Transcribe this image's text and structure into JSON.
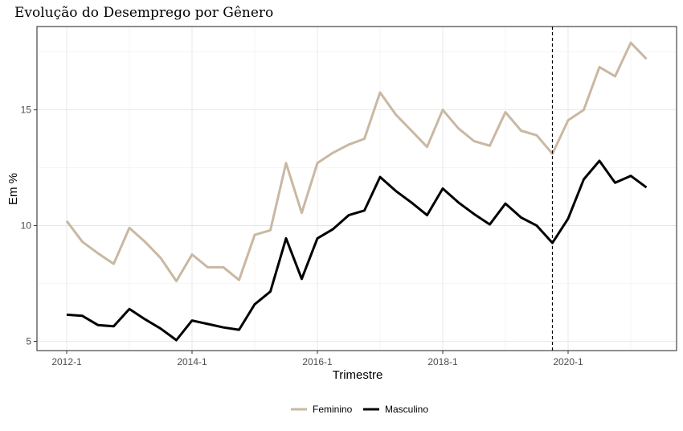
{
  "chart_data": {
    "type": "line",
    "title": "Evolução do Desemprego por Gênero",
    "xlabel": "Trimestre",
    "ylabel": "Em %",
    "x_tick_labels": [
      "2012-1",
      "2014-1",
      "2016-1",
      "2018-1",
      "2020-1"
    ],
    "x_tick_index": [
      0,
      8,
      16,
      24,
      32
    ],
    "y_ticks": [
      5,
      10,
      15
    ],
    "ylim": [
      4.6,
      18.6
    ],
    "n_points": 38,
    "vline_index": 31,
    "grid": true,
    "legend_position": "bottom",
    "series": [
      {
        "name": "Feminino",
        "color": "#c9b8a2",
        "values": [
          10.2,
          9.3,
          8.8,
          8.35,
          9.9,
          9.3,
          8.6,
          7.6,
          8.75,
          8.2,
          8.2,
          7.65,
          9.6,
          9.8,
          12.7,
          10.55,
          12.7,
          13.15,
          13.5,
          13.75,
          15.75,
          14.8,
          14.1,
          13.4,
          15.0,
          14.2,
          13.65,
          13.45,
          14.9,
          14.1,
          13.9,
          13.1,
          14.55,
          15.0,
          16.85,
          16.45,
          17.9,
          17.2
        ]
      },
      {
        "name": "Masculino",
        "color": "#000000",
        "values": [
          6.15,
          6.1,
          5.7,
          5.65,
          6.4,
          5.95,
          5.55,
          5.05,
          5.9,
          5.75,
          5.6,
          5.5,
          6.6,
          7.15,
          9.45,
          7.7,
          9.45,
          9.85,
          10.45,
          10.65,
          12.1,
          11.5,
          11.0,
          10.45,
          11.6,
          11.0,
          10.5,
          10.05,
          10.95,
          10.35,
          10.0,
          9.25,
          10.3,
          12.0,
          12.8,
          11.85,
          12.15,
          11.65
        ]
      }
    ]
  }
}
